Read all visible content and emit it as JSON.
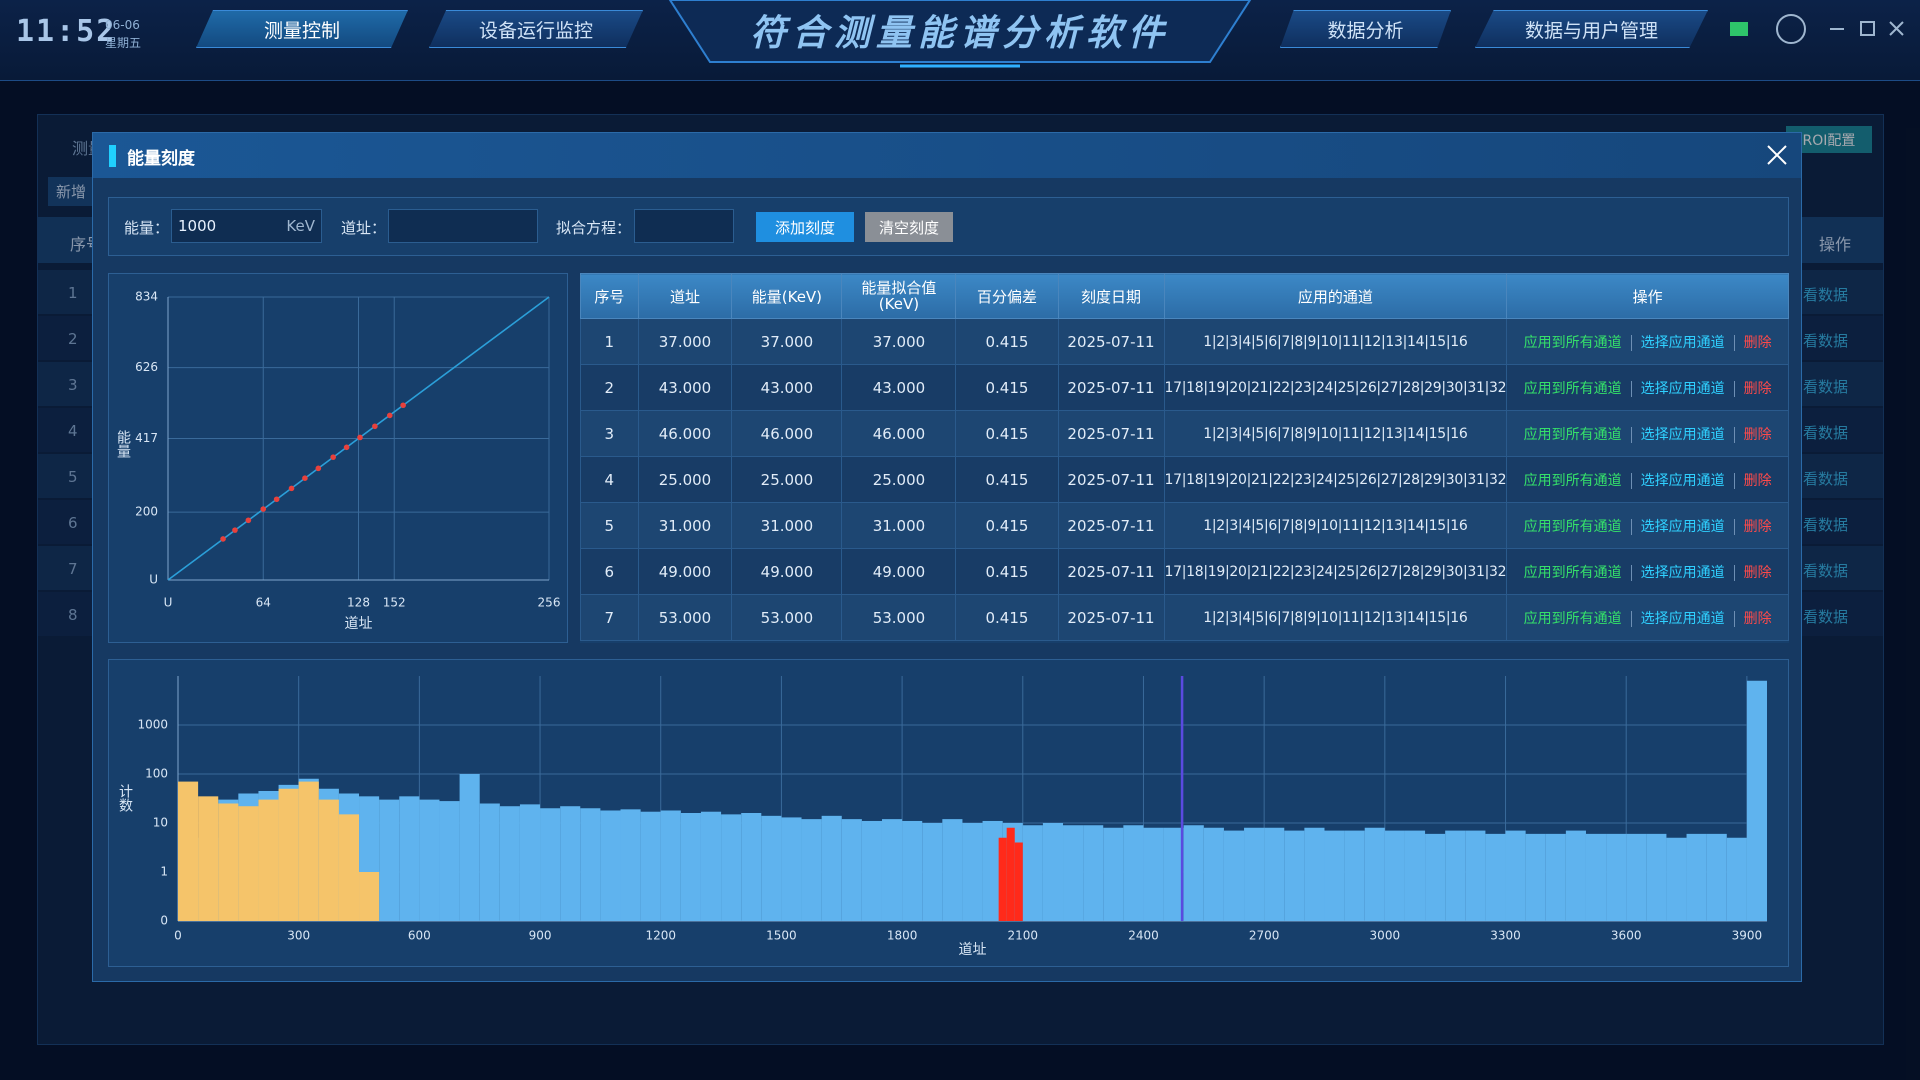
{
  "header": {
    "time": "11:52",
    "date": "06-06",
    "weekday": "星期五",
    "title": "符合测量能谱分析软件",
    "nav_left": [
      "测量控制",
      "设备运行监控"
    ],
    "nav_right": [
      "数据分析",
      "数据与用户管理"
    ]
  },
  "background": {
    "tab": "测量",
    "add_button": "新增",
    "column_index": "序号",
    "row_numbers": [
      "1",
      "2",
      "3",
      "4",
      "5",
      "6",
      "7",
      "8"
    ],
    "roi_button": "ROI配置",
    "column_action": "操作",
    "row_actions": [
      "看数据",
      "看数据",
      "看数据",
      "看数据",
      "看数据",
      "看数据",
      "看数据",
      "看数据"
    ]
  },
  "dialog": {
    "title": "能量刻度",
    "form": {
      "energy_label": "能量：",
      "energy_value": "1000",
      "energy_unit": "KeV",
      "channel_label": "道址：",
      "fit_label": "拟合方程：",
      "add_button": "添加刻度",
      "clear_button": "清空刻度"
    },
    "table": {
      "headers": [
        "序号",
        "道址",
        "能量(KeV)",
        "能量拟合值(KeV)",
        "百分偏差",
        "刻度日期",
        "应用的通道",
        "操作"
      ],
      "rows": [
        {
          "cells": [
            "1",
            "37.000",
            "37.000",
            "37.000",
            "0.415",
            "2025-07-11",
            "1|2|3|4|5|6|7|8|9|10|11|12|13|14|15|16"
          ],
          "actions": [
            "应用到所有通道",
            "选择应用通道",
            "删除"
          ]
        },
        {
          "cells": [
            "2",
            "43.000",
            "43.000",
            "43.000",
            "0.415",
            "2025-07-11",
            "17|18|19|20|21|22|23|24|25|26|27|28|29|30|31|32"
          ],
          "actions": [
            "应用到所有通道",
            "选择应用通道",
            "删除"
          ]
        },
        {
          "cells": [
            "3",
            "46.000",
            "46.000",
            "46.000",
            "0.415",
            "2025-07-11",
            "1|2|3|4|5|6|7|8|9|10|11|12|13|14|15|16"
          ],
          "actions": [
            "应用到所有通道",
            "选择应用通道",
            "删除"
          ]
        },
        {
          "cells": [
            "4",
            "25.000",
            "25.000",
            "25.000",
            "0.415",
            "2025-07-11",
            "17|18|19|20|21|22|23|24|25|26|27|28|29|30|31|32"
          ],
          "actions": [
            "应用到所有通道",
            "选择应用通道",
            "删除"
          ]
        },
        {
          "cells": [
            "5",
            "31.000",
            "31.000",
            "31.000",
            "0.415",
            "2025-07-11",
            "1|2|3|4|5|6|7|8|9|10|11|12|13|14|15|16"
          ],
          "actions": [
            "应用到所有通道",
            "选择应用通道",
            "删除"
          ]
        },
        {
          "cells": [
            "6",
            "49.000",
            "49.000",
            "49.000",
            "0.415",
            "2025-07-11",
            "17|18|19|20|21|22|23|24|25|26|27|28|29|30|31|32"
          ],
          "actions": [
            "应用到所有通道",
            "选择应用通道",
            "删除"
          ]
        },
        {
          "cells": [
            "7",
            "53.000",
            "53.000",
            "53.000",
            "0.415",
            "2025-07-11",
            "1|2|3|4|5|6|7|8|9|10|11|12|13|14|15|16"
          ],
          "actions": [
            "应用到所有通道",
            "选择应用通道",
            "删除"
          ]
        }
      ]
    }
  },
  "chart_data": [
    {
      "type": "line",
      "xlabel": "道址",
      "ylabel": "能量",
      "xlim": [
        0,
        256
      ],
      "ylim": [
        0,
        834
      ],
      "xticks": [
        {
          "value": 0,
          "label": "U"
        },
        64,
        128,
        152,
        256
      ],
      "yticks": [
        {
          "value": 0,
          "label": "U"
        },
        200,
        417,
        626,
        834
      ],
      "grid": true,
      "series": [
        {
          "type": "line",
          "color": "#2b9fd9",
          "x": [
            0,
            256
          ],
          "values": [
            0,
            834
          ]
        },
        {
          "type": "scatter",
          "color": "#e8413c",
          "x": [
            37,
            45,
            54,
            64,
            73,
            83,
            92,
            101,
            111,
            120,
            129,
            139,
            149,
            158
          ],
          "values": [
            121,
            147,
            176,
            209,
            238,
            270,
            300,
            329,
            362,
            391,
            420,
            453,
            485,
            515
          ]
        }
      ]
    },
    {
      "type": "histogram",
      "xlabel": "道址",
      "ylabel": "计数",
      "yscale": "log",
      "xlim": [
        0,
        3950
      ],
      "ylim": [
        0,
        10000
      ],
      "xticks": [
        0,
        300,
        600,
        900,
        1200,
        1500,
        1800,
        2100,
        2400,
        2700,
        3000,
        3300,
        3600,
        3900
      ],
      "yticks": [
        0,
        1,
        10,
        100,
        1000
      ],
      "grid": true,
      "series": [
        {
          "color": "#5fb3ee",
          "bins": [
            0,
            50,
            100,
            150,
            200,
            250,
            300,
            350,
            400,
            450,
            500,
            550,
            600,
            650,
            700,
            750,
            800,
            850,
            900,
            950,
            1000,
            1050,
            1100,
            1150,
            1200,
            1250,
            1300,
            1350,
            1400,
            1450,
            1500,
            1550,
            1600,
            1650,
            1700,
            1750,
            1800,
            1850,
            1900,
            1950,
            2000,
            2050,
            2100,
            2150,
            2200,
            2250,
            2300,
            2350,
            2400,
            2450,
            2500,
            2550,
            2600,
            2650,
            2700,
            2750,
            2800,
            2850,
            2900,
            2950,
            3000,
            3050,
            3100,
            3150,
            3200,
            3250,
            3300,
            3350,
            3400,
            3450,
            3500,
            3550,
            3600,
            3650,
            3700,
            3750,
            3800,
            3850,
            3900,
            3950
          ],
          "values": [
            0,
            5,
            30,
            40,
            45,
            60,
            80,
            50,
            40,
            35,
            30,
            35,
            30,
            28,
            100,
            25,
            22,
            24,
            20,
            22,
            20,
            18,
            19,
            17,
            18,
            16,
            17,
            15,
            16,
            14,
            13,
            12,
            14,
            12,
            11,
            12,
            11,
            10,
            12,
            10,
            11,
            10,
            9,
            10,
            9,
            9,
            8,
            9,
            8,
            8,
            9,
            8,
            7,
            8,
            8,
            7,
            8,
            7,
            7,
            8,
            7,
            7,
            6,
            7,
            7,
            6,
            7,
            6,
            6,
            7,
            6,
            6,
            6,
            6,
            5,
            6,
            6,
            5,
            8000
          ]
        },
        {
          "color": "#f5c46a",
          "bins": [
            0,
            50,
            100,
            150,
            200,
            250,
            300,
            350,
            400,
            450,
            500
          ],
          "values": [
            70,
            35,
            25,
            22,
            30,
            50,
            70,
            30,
            15,
            1
          ]
        },
        {
          "color": "#ff2a1a",
          "bins": [
            2040,
            2060,
            2080,
            2100
          ],
          "values": [
            5,
            8,
            4
          ]
        }
      ],
      "markers": [
        {
          "x": 2496,
          "color": "#5a4ae0"
        }
      ]
    }
  ]
}
